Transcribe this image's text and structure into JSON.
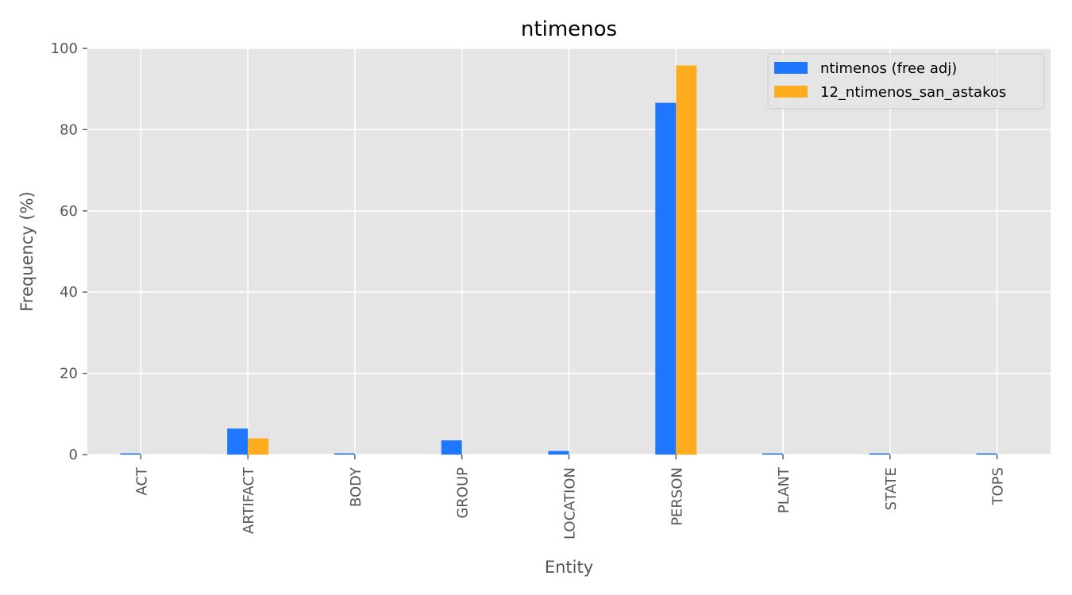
{
  "chart_data": {
    "type": "bar",
    "title": "ntimenos",
    "xlabel": "Entity",
    "ylabel": "Frequency (%)",
    "ylim": [
      0,
      100
    ],
    "yticks": [
      0,
      20,
      40,
      60,
      80,
      100
    ],
    "grid": true,
    "legend_position": "top-right",
    "categories": [
      "ACT",
      "ARTIFACT",
      "BODY",
      "GROUP",
      "LOCATION",
      "PERSON",
      "PLANT",
      "STATE",
      "TOPS"
    ],
    "series": [
      {
        "name": "ntimenos (free adj)",
        "color": "#1f77ff",
        "values": [
          0.3,
          6.4,
          0.3,
          3.5,
          0.9,
          86.6,
          0.3,
          0.3,
          0.3
        ]
      },
      {
        "name": "12_ntimenos_san_astakos",
        "color": "#ffad1f",
        "values": [
          0,
          4.0,
          0,
          0,
          0,
          95.8,
          0,
          0,
          0
        ]
      }
    ]
  }
}
